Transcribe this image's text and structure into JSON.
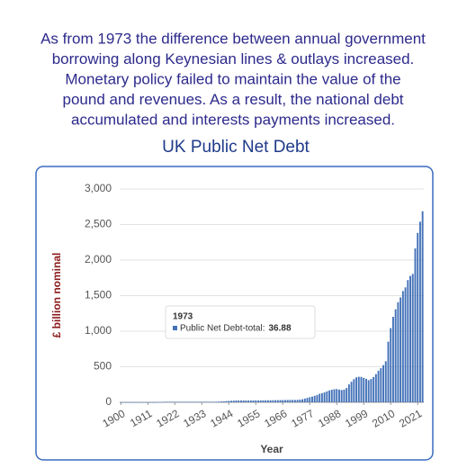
{
  "intro": [
    "As from 1973 the difference between annual government",
    "borrowing along Keynesian lines & outlays increased.",
    "Monetary policy failed to maintain the value of the",
    "pound and revenues. As a result, the national debt",
    "accumulated and interests payments increased."
  ],
  "chart_data": {
    "type": "bar",
    "title": "UK Public Net Debt",
    "x_label": "Year",
    "y_label": "£ billion nominal",
    "x": [
      1900,
      1901,
      1902,
      1903,
      1904,
      1905,
      1906,
      1907,
      1908,
      1909,
      1910,
      1911,
      1912,
      1913,
      1914,
      1915,
      1916,
      1917,
      1918,
      1919,
      1920,
      1921,
      1922,
      1923,
      1924,
      1925,
      1926,
      1927,
      1928,
      1929,
      1930,
      1931,
      1932,
      1933,
      1934,
      1935,
      1936,
      1937,
      1938,
      1939,
      1940,
      1941,
      1942,
      1943,
      1944,
      1945,
      1946,
      1947,
      1948,
      1949,
      1950,
      1951,
      1952,
      1953,
      1954,
      1955,
      1956,
      1957,
      1958,
      1959,
      1960,
      1961,
      1962,
      1963,
      1964,
      1965,
      1966,
      1967,
      1968,
      1969,
      1970,
      1971,
      1972,
      1973,
      1974,
      1975,
      1976,
      1977,
      1978,
      1979,
      1980,
      1981,
      1982,
      1983,
      1984,
      1985,
      1986,
      1987,
      1988,
      1989,
      1990,
      1991,
      1992,
      1993,
      1994,
      1995,
      1996,
      1997,
      1998,
      1999,
      2000,
      2001,
      2002,
      2003,
      2004,
      2005,
      2006,
      2007,
      2008,
      2009,
      2010,
      2011,
      2012,
      2013,
      2014,
      2015,
      2016,
      2017,
      2018,
      2019,
      2020,
      2021,
      2022,
      2023
    ],
    "series": [
      {
        "color": "#4472b8",
        "values": [
          0.6,
          0.6,
          0.7,
          0.7,
          0.7,
          0.7,
          0.7,
          0.7,
          0.7,
          0.7,
          0.7,
          0.7,
          0.7,
          0.7,
          1.0,
          2.2,
          4.0,
          5.9,
          7.4,
          7.5,
          7.8,
          7.6,
          7.7,
          7.7,
          7.6,
          7.6,
          7.5,
          7.6,
          7.5,
          7.5,
          7.5,
          7.4,
          7.4,
          7.6,
          7.7,
          7.8,
          7.8,
          7.8,
          7.9,
          8.1,
          9.5,
          11.9,
          14.4,
          17.0,
          19.6,
          21.4,
          23.6,
          25.6,
          25.5,
          25.4,
          25.5,
          25.1,
          24.9,
          25.4,
          26.0,
          26.0,
          26.5,
          26.8,
          27.0,
          27.7,
          28.0,
          28.3,
          28.8,
          29.5,
          30.2,
          30.6,
          31.0,
          31.8,
          33.0,
          33.0,
          32.8,
          32.9,
          34.0,
          36.88,
          42.3,
          52.6,
          61.8,
          72.0,
          80.4,
          91.5,
          103.1,
          119.6,
          128.5,
          139.9,
          154.2,
          167.3,
          176.2,
          184.3,
          186.1,
          178.9,
          172.5,
          178.4,
          200.4,
          252.1,
          288.9,
          325.0,
          350.8,
          359.1,
          357.1,
          343.5,
          330.4,
          311.5,
          327.4,
          356.1,
          396.6,
          444.1,
          480.3,
          523.0,
          577.1,
          852.5,
          1043.6,
          1202.1,
          1307.6,
          1407.6,
          1475.6,
          1564.4,
          1616.3,
          1719.1,
          1776.9,
          1805.5,
          2163.9,
          2382.0,
          2540.3,
          2686.6
        ]
      }
    ],
    "xlim": [
      1900,
      2023
    ],
    "xticks": [
      1900,
      1911,
      1922,
      1933,
      1944,
      1955,
      1966,
      1977,
      1988,
      1999,
      2010,
      2021
    ],
    "ylim": [
      0,
      3000
    ],
    "yticks": [
      0,
      500,
      {
        "value": 1000,
        "label": "1,000"
      },
      {
        "value": 1500,
        "label": "1,500"
      },
      {
        "value": 2000,
        "label": "2,000"
      },
      {
        "value": 2500,
        "label": "2,500"
      },
      {
        "value": 3000,
        "label": "3,000"
      }
    ],
    "grid": true,
    "tooltip": {
      "title": "1973",
      "label": "Public Net Debt-total:",
      "value": 36.88
    }
  }
}
